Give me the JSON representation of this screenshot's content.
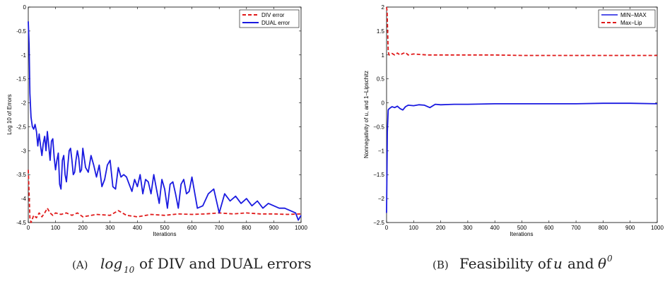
{
  "colors": {
    "div": "#e01a1a",
    "dual": "#1a1ae0",
    "axis": "#000000"
  },
  "panels": [
    {
      "caption_letter": "(A)",
      "caption_text": "of DIV and DUAL errors",
      "caption_math": "log",
      "caption_sub": "10"
    },
    {
      "caption_letter": "(B)",
      "caption_text": "Feasibility of",
      "caption_math_u": "u",
      "caption_and": "and",
      "caption_math_theta": "θ",
      "caption_sup": "0"
    }
  ],
  "chart_data": [
    {
      "type": "line",
      "xlabel": "Iterations",
      "ylabel": "Log 10 of Errors",
      "xlim": [
        0,
        1000
      ],
      "ylim": [
        -4.5,
        0
      ],
      "xticks": [
        0,
        100,
        200,
        300,
        400,
        500,
        600,
        700,
        800,
        900,
        1000
      ],
      "yticks": [
        0,
        -0.5,
        -1,
        -1.5,
        -2,
        -2.5,
        -3,
        -3.5,
        -4,
        -4.5
      ],
      "xtick_labels": [
        "0",
        "100",
        "200",
        "300",
        "400",
        "500",
        "600",
        "700",
        "800",
        "900",
        "1000"
      ],
      "ytick_labels": [
        "0",
        "-0.5",
        "-1",
        "-1.5",
        "-2",
        "-2.5",
        "-3",
        "-3.5",
        "-4",
        "-4.5"
      ],
      "legend_position": "top-right",
      "series": [
        {
          "name": "DIV error",
          "style": "dashed",
          "color": "#e01a1a",
          "x": [
            0,
            3,
            6,
            10,
            20,
            30,
            40,
            50,
            60,
            70,
            80,
            90,
            100,
            120,
            140,
            160,
            180,
            200,
            250,
            300,
            330,
            360,
            400,
            450,
            500,
            550,
            600,
            650,
            700,
            750,
            800,
            850,
            900,
            950,
            1000
          ],
          "y": [
            -3.4,
            -3.9,
            -4.4,
            -4.5,
            -4.35,
            -4.4,
            -4.3,
            -4.38,
            -4.3,
            -4.2,
            -4.3,
            -4.35,
            -4.3,
            -4.33,
            -4.3,
            -4.35,
            -4.3,
            -4.38,
            -4.33,
            -4.35,
            -4.25,
            -4.35,
            -4.38,
            -4.33,
            -4.35,
            -4.32,
            -4.33,
            -4.32,
            -4.3,
            -4.32,
            -4.3,
            -4.32,
            -4.32,
            -4.33,
            -4.32
          ]
        },
        {
          "name": "DUAL error",
          "style": "solid",
          "color": "#1a1ae0",
          "x": [
            0,
            3,
            6,
            10,
            15,
            20,
            25,
            30,
            35,
            40,
            45,
            50,
            55,
            60,
            65,
            70,
            75,
            80,
            85,
            90,
            95,
            100,
            105,
            110,
            115,
            120,
            125,
            130,
            135,
            140,
            145,
            150,
            155,
            160,
            165,
            170,
            175,
            180,
            185,
            190,
            195,
            200,
            210,
            220,
            230,
            240,
            250,
            260,
            270,
            280,
            290,
            300,
            310,
            320,
            330,
            340,
            350,
            360,
            370,
            380,
            390,
            400,
            410,
            420,
            430,
            440,
            450,
            460,
            470,
            480,
            490,
            500,
            510,
            520,
            530,
            540,
            550,
            560,
            570,
            580,
            590,
            600,
            620,
            640,
            660,
            680,
            700,
            720,
            740,
            760,
            780,
            800,
            820,
            840,
            860,
            880,
            900,
            920,
            940,
            960,
            980,
            990,
            1000
          ],
          "y": [
            -0.3,
            -0.8,
            -1.8,
            -2.3,
            -2.5,
            -2.55,
            -2.45,
            -2.6,
            -2.9,
            -2.65,
            -2.9,
            -3.1,
            -2.85,
            -2.7,
            -3.0,
            -2.6,
            -2.9,
            -3.2,
            -2.8,
            -2.75,
            -3.15,
            -3.4,
            -3.2,
            -3.05,
            -3.7,
            -3.8,
            -3.2,
            -3.1,
            -3.5,
            -3.65,
            -3.3,
            -3.0,
            -2.95,
            -3.2,
            -3.5,
            -3.45,
            -3.2,
            -3.0,
            -3.15,
            -3.45,
            -3.4,
            -2.95,
            -3.35,
            -3.45,
            -3.1,
            -3.3,
            -3.55,
            -3.3,
            -3.75,
            -3.6,
            -3.3,
            -3.2,
            -3.75,
            -3.8,
            -3.35,
            -3.55,
            -3.5,
            -3.55,
            -3.7,
            -3.85,
            -3.6,
            -3.75,
            -3.5,
            -3.9,
            -3.6,
            -3.65,
            -3.9,
            -3.5,
            -3.8,
            -4.1,
            -3.6,
            -3.8,
            -4.2,
            -3.7,
            -3.65,
            -3.9,
            -4.2,
            -3.7,
            -3.6,
            -3.9,
            -3.85,
            -3.55,
            -4.2,
            -4.15,
            -3.9,
            -3.8,
            -4.3,
            -3.9,
            -4.05,
            -3.95,
            -4.1,
            -4.0,
            -4.15,
            -4.05,
            -4.2,
            -4.1,
            -4.15,
            -4.2,
            -4.2,
            -4.25,
            -4.3,
            -4.45,
            -4.35
          ]
        }
      ]
    },
    {
      "type": "line",
      "xlabel": "Iterations",
      "ylabel": "Nonnegativity of u, and 1–Lipschitz",
      "xlim": [
        0,
        1000
      ],
      "ylim": [
        -2.5,
        2
      ],
      "xticks": [
        0,
        100,
        200,
        300,
        400,
        500,
        600,
        700,
        800,
        900,
        1000
      ],
      "yticks": [
        2,
        1.5,
        1,
        0.5,
        0,
        -0.5,
        -1,
        -1.5,
        -2,
        -2.5
      ],
      "xtick_labels": [
        "0",
        "100",
        "200",
        "300",
        "400",
        "500",
        "600",
        "700",
        "800",
        "900",
        "1000"
      ],
      "ytick_labels": [
        "2",
        "1.5",
        "1",
        "0.5",
        "0",
        "−0.5",
        "−1",
        "−1.5",
        "−2",
        "−2.5"
      ],
      "legend_position": "top-right",
      "series": [
        {
          "name": "MIN−MAX",
          "style": "solid",
          "color": "#1a1ae0",
          "x": [
            0,
            3,
            6,
            10,
            20,
            30,
            40,
            50,
            60,
            70,
            80,
            100,
            120,
            140,
            160,
            180,
            200,
            250,
            300,
            400,
            500,
            600,
            700,
            800,
            900,
            1000
          ],
          "y": [
            -2.3,
            -0.6,
            -0.15,
            -0.12,
            -0.08,
            -0.1,
            -0.07,
            -0.12,
            -0.15,
            -0.08,
            -0.05,
            -0.06,
            -0.04,
            -0.05,
            -0.1,
            -0.03,
            -0.04,
            -0.03,
            -0.03,
            -0.02,
            -0.02,
            -0.02,
            -0.02,
            -0.01,
            -0.01,
            -0.02
          ]
        },
        {
          "name": "Max−Lip",
          "style": "dashed",
          "color": "#e01a1a",
          "x": [
            0,
            2,
            4,
            6,
            8,
            10,
            20,
            30,
            40,
            50,
            60,
            70,
            80,
            100,
            150,
            200,
            300,
            400,
            500,
            600,
            700,
            800,
            900,
            1000
          ],
          "y": [
            2.0,
            1.9,
            1.5,
            1.1,
            1.02,
            1.0,
            1.03,
            1.0,
            1.04,
            1.0,
            1.03,
            1.05,
            1.0,
            1.02,
            1.0,
            1.0,
            1.0,
            1.0,
            0.99,
            0.99,
            0.99,
            0.99,
            0.99,
            0.99
          ]
        }
      ]
    }
  ]
}
